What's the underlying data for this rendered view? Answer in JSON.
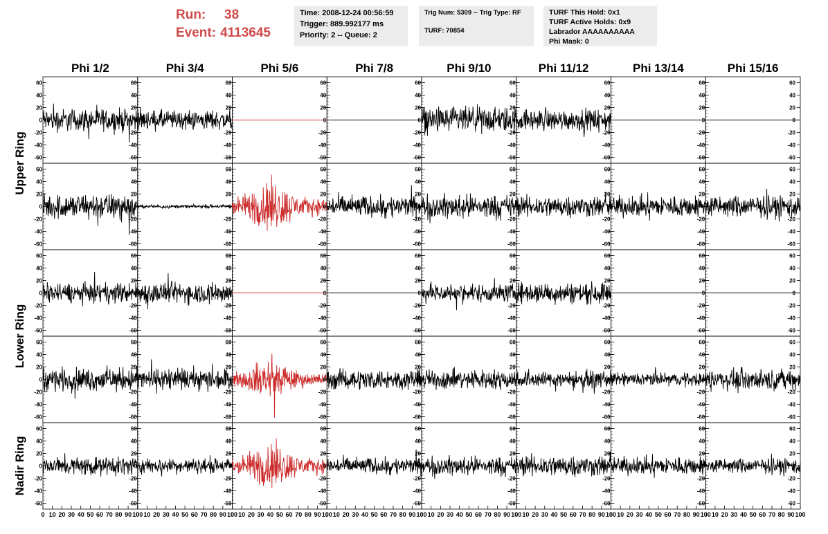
{
  "header": {
    "run_label": "Run:",
    "run_value": "38",
    "event_label": "Event:",
    "event_value": "4113645",
    "time": "Time: 2008-12-24 00:56:59",
    "trigger": "Trigger: 889.992177 ms",
    "priority": "Priority: 2 -- Queue: 2",
    "trig_num": "Trig Num: 5309 -- Trig Type: RF",
    "turf": "TURF: 70854",
    "turf_hold": "TURF This Hold: 0x1",
    "turf_active": "TURF Active Holds: 0x9",
    "labrador": "Labrador AAAAAAAAAA",
    "phi_mask": "Phi Mask: 0"
  },
  "colors": {
    "trace": "#000000",
    "highlight": "#cc2b2b",
    "header_red": "#d14a4a",
    "box_bg": "#ececec"
  },
  "chart_data": {
    "type": "line",
    "columns": [
      "Phi 1/2",
      "Phi 3/4",
      "Phi 5/6",
      "Phi 7/8",
      "Phi 9/10",
      "Phi 11/12",
      "Phi 13/14",
      "Phi 15/16"
    ],
    "ring_labels": [
      "Upper Ring",
      "Lower Ring",
      "Nadir Ring"
    ],
    "ylim": [
      -65,
      65
    ],
    "yticks": [
      -60,
      -40,
      -20,
      0,
      20,
      40,
      60
    ],
    "xlim": [
      0,
      100
    ],
    "xticks": [
      0,
      10,
      20,
      30,
      40,
      50,
      60,
      70,
      80,
      90,
      100
    ],
    "rows": [
      {
        "amplitudes": [
          14,
          12,
          0,
          0,
          16,
          13,
          0,
          0
        ],
        "highlight": [
          false,
          false,
          true,
          false,
          false,
          false,
          false,
          false
        ]
      },
      {
        "amplitudes": [
          16,
          2,
          22,
          13,
          14,
          13,
          13,
          13
        ],
        "highlight": [
          false,
          false,
          true,
          false,
          false,
          false,
          false,
          false
        ]
      },
      {
        "amplitudes": [
          12,
          13,
          0,
          0,
          11,
          13,
          0,
          0
        ],
        "highlight": [
          false,
          false,
          true,
          false,
          false,
          false,
          false,
          false
        ]
      },
      {
        "amplitudes": [
          14,
          13,
          17,
          12,
          12,
          10,
          8,
          12
        ],
        "highlight": [
          false,
          false,
          true,
          false,
          false,
          false,
          false,
          false
        ]
      },
      {
        "amplitudes": [
          11,
          9,
          20,
          10,
          11,
          13,
          11,
          9
        ],
        "highlight": [
          false,
          false,
          true,
          false,
          false,
          false,
          false,
          false
        ]
      }
    ]
  }
}
